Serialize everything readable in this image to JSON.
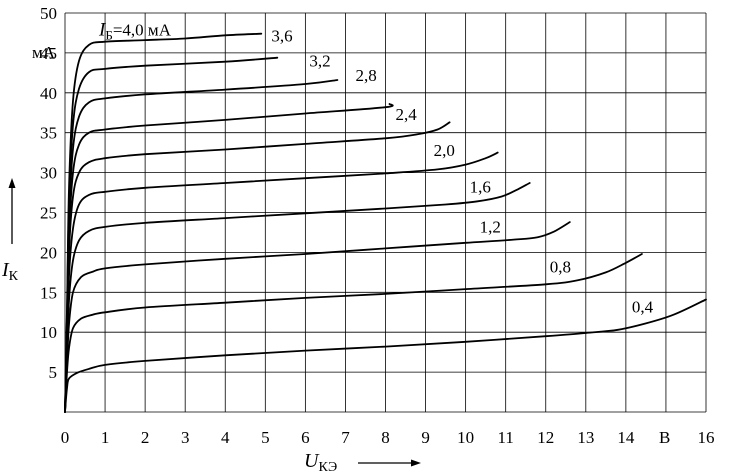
{
  "chart_data": {
    "type": "line",
    "title": "",
    "xlabel": {
      "main": "U",
      "sub": "КЭ"
    },
    "ylabel": {
      "main": "I",
      "sub": "К"
    },
    "x_unit": "В",
    "y_unit": "мА",
    "xlim": [
      0,
      16
    ],
    "ylim": [
      0,
      50
    ],
    "grid": true,
    "x_ticks": [
      {
        "v": 0,
        "label": "0"
      },
      {
        "v": 1,
        "label": "1"
      },
      {
        "v": 2,
        "label": "2"
      },
      {
        "v": 3,
        "label": "3"
      },
      {
        "v": 4,
        "label": "4"
      },
      {
        "v": 5,
        "label": "5"
      },
      {
        "v": 6,
        "label": "6"
      },
      {
        "v": 7,
        "label": "7"
      },
      {
        "v": 8,
        "label": "8"
      },
      {
        "v": 9,
        "label": "9"
      },
      {
        "v": 10,
        "label": "10"
      },
      {
        "v": 11,
        "label": "11"
      },
      {
        "v": 12,
        "label": "12"
      },
      {
        "v": 13,
        "label": "13"
      },
      {
        "v": 14,
        "label": "14"
      },
      {
        "v": 16,
        "label": "16"
      }
    ],
    "y_ticks": [
      {
        "v": 5,
        "label": "5"
      },
      {
        "v": 10,
        "label": "10"
      },
      {
        "v": 15,
        "label": "15"
      },
      {
        "v": 20,
        "label": "20"
      },
      {
        "v": 25,
        "label": "25"
      },
      {
        "v": 30,
        "label": "30"
      },
      {
        "v": 35,
        "label": "35"
      },
      {
        "v": 40,
        "label": "40"
      },
      {
        "v": 45,
        "label": "45"
      },
      {
        "v": 50,
        "label": "50"
      }
    ],
    "series": [
      {
        "name": "0,4",
        "label": "0,4",
        "label_at": [
          14.15,
          12.5
        ],
        "points": [
          [
            0,
            0
          ],
          [
            0.05,
            3
          ],
          [
            0.1,
            4.2
          ],
          [
            0.3,
            4.9
          ],
          [
            0.6,
            5.4
          ],
          [
            1,
            5.9
          ],
          [
            2,
            6.4
          ],
          [
            4,
            7.1
          ],
          [
            6,
            7.7
          ],
          [
            8,
            8.2
          ],
          [
            10,
            8.8
          ],
          [
            12,
            9.5
          ],
          [
            13,
            9.9
          ],
          [
            13.8,
            10.3
          ],
          [
            14.5,
            11.1
          ],
          [
            15.2,
            12.2
          ],
          [
            16,
            14.1
          ]
        ]
      },
      {
        "name": "0,8",
        "label": "0,8",
        "label_at": [
          12.1,
          17.5
        ],
        "points": [
          [
            0,
            0
          ],
          [
            0.05,
            5
          ],
          [
            0.1,
            8
          ],
          [
            0.2,
            10.5
          ],
          [
            0.4,
            11.7
          ],
          [
            0.7,
            12.2
          ],
          [
            1,
            12.5
          ],
          [
            2,
            13.1
          ],
          [
            4,
            13.7
          ],
          [
            6,
            14.3
          ],
          [
            8,
            14.8
          ],
          [
            10,
            15.4
          ],
          [
            12,
            16.0
          ],
          [
            12.8,
            16.5
          ],
          [
            13.5,
            17.5
          ],
          [
            14,
            18.7
          ],
          [
            14.4,
            19.8
          ]
        ]
      },
      {
        "name": "1,2",
        "label": "1,2",
        "label_at": [
          10.35,
          22.5
        ],
        "points": [
          [
            0,
            0
          ],
          [
            0.05,
            6
          ],
          [
            0.1,
            11
          ],
          [
            0.2,
            15
          ],
          [
            0.4,
            16.9
          ],
          [
            0.7,
            17.6
          ],
          [
            1,
            18.0
          ],
          [
            2,
            18.5
          ],
          [
            4,
            19.2
          ],
          [
            6,
            19.8
          ],
          [
            8,
            20.5
          ],
          [
            10,
            21.2
          ],
          [
            11.2,
            21.6
          ],
          [
            11.8,
            21.9
          ],
          [
            12.2,
            22.6
          ],
          [
            12.6,
            23.8
          ]
        ]
      },
      {
        "name": "1,6",
        "label": "1,6",
        "label_at": [
          10.1,
          27.5
        ],
        "points": [
          [
            0,
            0
          ],
          [
            0.05,
            7
          ],
          [
            0.1,
            14
          ],
          [
            0.2,
            19
          ],
          [
            0.35,
            21.5
          ],
          [
            0.6,
            22.7
          ],
          [
            1,
            23.2
          ],
          [
            2,
            23.7
          ],
          [
            4,
            24.3
          ],
          [
            6,
            24.9
          ],
          [
            8,
            25.5
          ],
          [
            9.5,
            26.0
          ],
          [
            10.3,
            26.4
          ],
          [
            10.9,
            27.0
          ],
          [
            11.3,
            27.9
          ],
          [
            11.6,
            28.7
          ]
        ]
      },
      {
        "name": "2,0",
        "label": "2,0",
        "label_at": [
          9.2,
          32.1
        ],
        "points": [
          [
            0,
            0
          ],
          [
            0.05,
            8
          ],
          [
            0.1,
            17
          ],
          [
            0.2,
            23
          ],
          [
            0.35,
            26
          ],
          [
            0.6,
            27.2
          ],
          [
            1,
            27.6
          ],
          [
            2,
            28.1
          ],
          [
            4,
            28.7
          ],
          [
            6,
            29.3
          ],
          [
            8,
            29.9
          ],
          [
            9.3,
            30.4
          ],
          [
            10.0,
            31.0
          ],
          [
            10.5,
            31.8
          ],
          [
            10.8,
            32.5
          ]
        ]
      },
      {
        "name": "2,4",
        "label": "2,4",
        "label_at": [
          8.25,
          36.6
        ],
        "points": [
          [
            0,
            0
          ],
          [
            0.05,
            9
          ],
          [
            0.1,
            20
          ],
          [
            0.2,
            27
          ],
          [
            0.35,
            30
          ],
          [
            0.6,
            31.3
          ],
          [
            1,
            31.8
          ],
          [
            2,
            32.3
          ],
          [
            4,
            32.9
          ],
          [
            6,
            33.6
          ],
          [
            8,
            34.3
          ],
          [
            8.8,
            34.8
          ],
          [
            9.3,
            35.4
          ],
          [
            9.6,
            36.3
          ]
        ]
      },
      {
        "name": "2,8",
        "label": "2,8",
        "label_at": [
          7.25,
          41.5
        ],
        "points": [
          [
            0,
            0
          ],
          [
            0.05,
            10
          ],
          [
            0.1,
            22
          ],
          [
            0.2,
            30
          ],
          [
            0.35,
            33.5
          ],
          [
            0.6,
            35.0
          ],
          [
            1,
            35.4
          ],
          [
            2,
            35.9
          ],
          [
            4,
            36.6
          ],
          [
            6,
            37.4
          ],
          [
            8,
            38.2
          ],
          [
            8.1,
            38.6
          ]
        ]
      },
      {
        "name": "3,2",
        "label": "3,2",
        "label_at": [
          6.1,
          43.3
        ],
        "points": [
          [
            0,
            0
          ],
          [
            0.05,
            11
          ],
          [
            0.1,
            24
          ],
          [
            0.2,
            33
          ],
          [
            0.35,
            37
          ],
          [
            0.6,
            38.8
          ],
          [
            1,
            39.3
          ],
          [
            2,
            39.8
          ],
          [
            4,
            40.4
          ],
          [
            6,
            41.1
          ],
          [
            6.8,
            41.6
          ]
        ]
      },
      {
        "name": "3,6",
        "label": "3,6",
        "label_at": [
          5.15,
          46.4
        ],
        "points": [
          [
            0,
            0
          ],
          [
            0.05,
            12
          ],
          [
            0.1,
            26
          ],
          [
            0.2,
            36
          ],
          [
            0.35,
            40.5
          ],
          [
            0.6,
            42.6
          ],
          [
            1,
            43.0
          ],
          [
            2,
            43.4
          ],
          [
            4,
            43.9
          ],
          [
            5.3,
            44.4
          ]
        ]
      },
      {
        "name": "4,0",
        "label": "=4,0 мА",
        "label_at": [
          0.85,
          47.2
        ],
        "points": [
          [
            0,
            0
          ],
          [
            0.05,
            13
          ],
          [
            0.1,
            28
          ],
          [
            0.2,
            39
          ],
          [
            0.35,
            44
          ],
          [
            0.6,
            46.0
          ],
          [
            1,
            46.4
          ],
          [
            2,
            46.6
          ],
          [
            3,
            46.8
          ],
          [
            4,
            47.2
          ],
          [
            4.9,
            47.4
          ]
        ]
      }
    ],
    "first_label_sub": "Б",
    "first_label_main": "I"
  }
}
